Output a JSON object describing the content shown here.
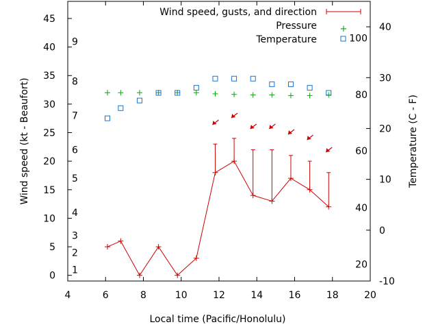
{
  "chart_data": {
    "type": "line",
    "xlabel": "Local time (Pacific/Honolulu)",
    "ylabel": "Wind speed (kt - Beaufort)",
    "y2label": "Temperature (C - F)",
    "xlim": [
      4,
      20
    ],
    "ylim": [
      -1,
      48
    ],
    "y2lim": [
      -10,
      45
    ],
    "x_ticks": [
      "4",
      "6",
      "8",
      "10",
      "12",
      "14",
      "16",
      "18",
      "20"
    ],
    "y_ticks": [
      "0",
      "5",
      "10",
      "15",
      "20",
      "25",
      "30",
      "35",
      "40",
      "45"
    ],
    "y2_ticks": [
      "-10",
      "0",
      "10",
      "20",
      "30",
      "40"
    ],
    "beaufort_labels": [
      {
        "label": "1",
        "y": 1
      },
      {
        "label": "2",
        "y": 4
      },
      {
        "label": "3",
        "y": 7
      },
      {
        "label": "4",
        "y": 11
      },
      {
        "label": "5",
        "y": 17
      },
      {
        "label": "6",
        "y": 22
      },
      {
        "label": "7",
        "y": 28
      },
      {
        "label": "8",
        "y": 34
      },
      {
        "label": "9",
        "y": 41
      }
    ],
    "fahrenheit_labels": [
      {
        "label": "20",
        "c": -6.7
      },
      {
        "label": "40",
        "c": 4.4
      },
      {
        "label": "60",
        "c": 15.6
      },
      {
        "label": "80",
        "c": 26.7
      },
      {
        "label": "100",
        "c": 37.8
      }
    ],
    "legend_position": "top-right",
    "series": [
      {
        "name": "Wind speed, gusts, and direction",
        "color": "#cc0000",
        "x": [
          6.1,
          6.8,
          7.8,
          8.8,
          9.8,
          10.8,
          11.8,
          12.8,
          13.8,
          14.8,
          15.8,
          16.8,
          17.8
        ],
        "values": [
          5,
          6,
          0,
          5,
          0,
          3,
          18,
          20,
          14,
          13,
          17,
          15,
          12
        ],
        "gusts": [
          null,
          null,
          null,
          null,
          null,
          null,
          23,
          24,
          22,
          22,
          21,
          20,
          18
        ],
        "direction_x": [
          11.8,
          12.8,
          13.8,
          14.8,
          15.8,
          16.8,
          17.8
        ]
      },
      {
        "name": "Pressure",
        "color": "#00aa00",
        "x": [
          6.1,
          6.8,
          7.8,
          8.8,
          9.8,
          10.8,
          11.8,
          12.8,
          13.8,
          14.8,
          15.8,
          16.8,
          17.8
        ],
        "values": [
          32,
          32,
          32,
          32,
          32,
          32,
          31.8,
          31.7,
          31.6,
          31.6,
          31.5,
          31.5,
          31.6
        ]
      },
      {
        "name": "Temperature",
        "color": "#1874cd",
        "x": [
          6.1,
          6.8,
          7.8,
          8.8,
          9.8,
          10.8,
          11.8,
          12.8,
          13.8,
          14.8,
          15.8,
          16.8,
          17.8
        ],
        "values_c": [
          22,
          24,
          25.5,
          27,
          27,
          28,
          29.8,
          29.8,
          29.8,
          28.7,
          28.7,
          28,
          27
        ]
      }
    ]
  }
}
